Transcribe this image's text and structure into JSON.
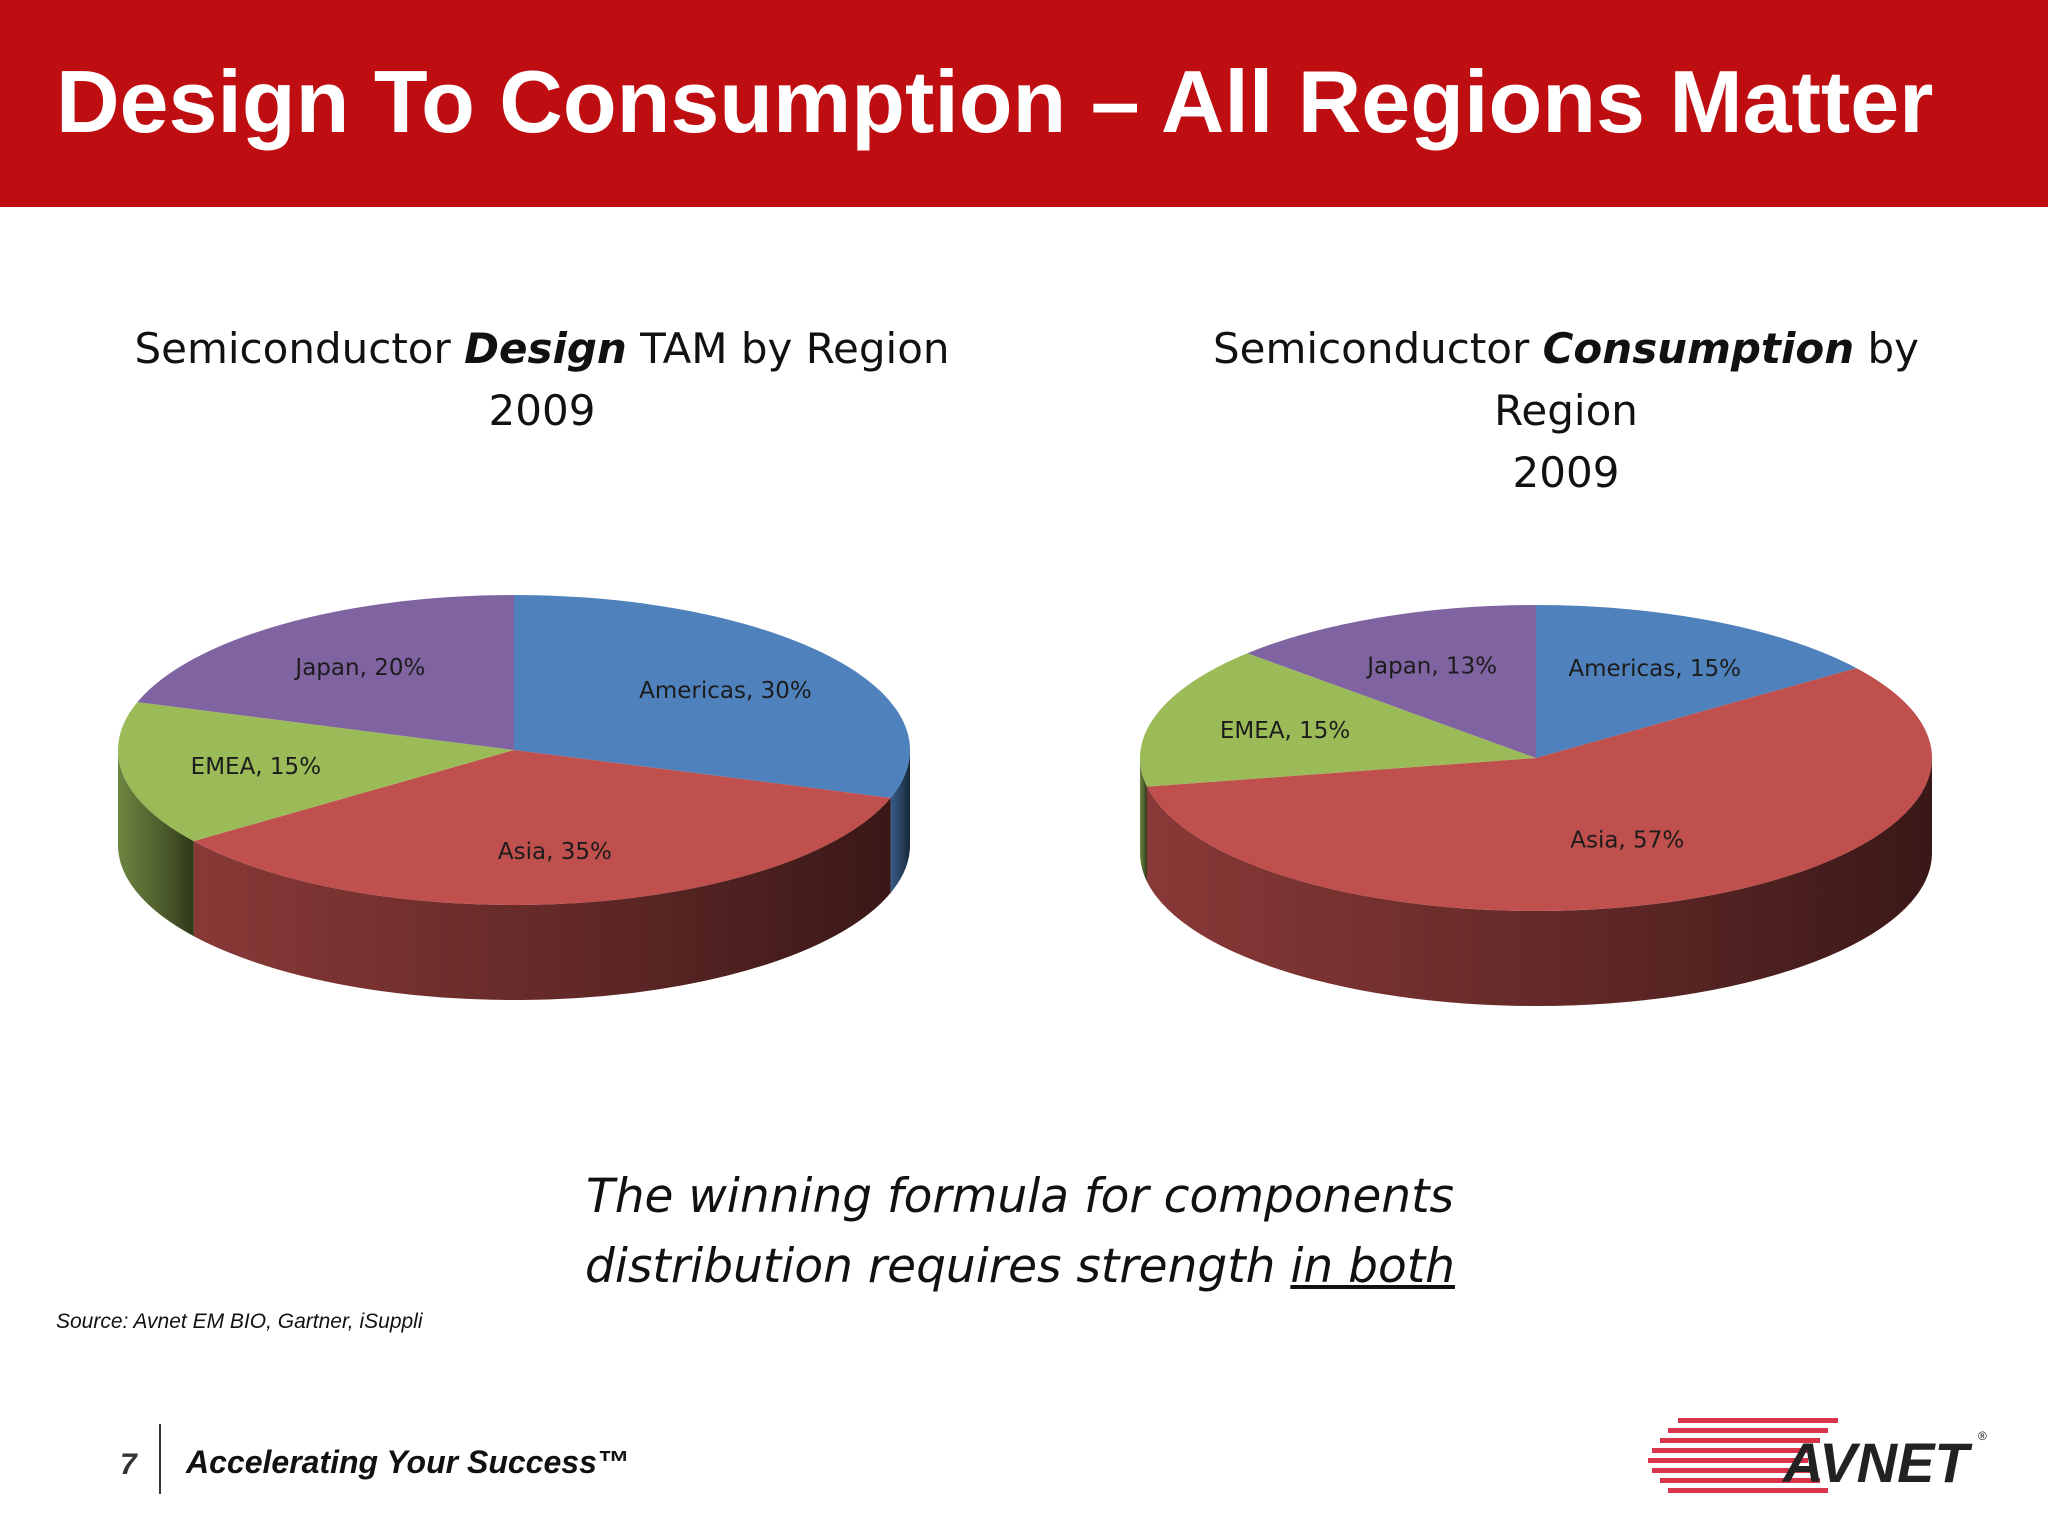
{
  "header": {
    "title": "Design To Consumption – All Regions Matter"
  },
  "colors": {
    "banner": "#bf0e12",
    "Americas": "#4f81bd",
    "Asia": "#c0504d",
    "EMEA": "#9bbb59",
    "Japan": "#8064a2"
  },
  "chart_data": [
    {
      "type": "pie",
      "title_pre": "Semiconductor ",
      "title_em": "Design",
      "title_post": " TAM by Region",
      "title_line2": "2009",
      "slices": [
        {
          "name": "Americas",
          "value": 30,
          "label": "Americas, 30%"
        },
        {
          "name": "Asia",
          "value": 35,
          "label": "Asia, 35%"
        },
        {
          "name": "EMEA",
          "value": 15,
          "label": "EMEA, 15%"
        },
        {
          "name": "Japan",
          "value": 20,
          "label": "Japan, 20%"
        }
      ]
    },
    {
      "type": "pie",
      "title_pre": "Semiconductor ",
      "title_em": "Consumption",
      "title_post": " by Region",
      "title_line2": "2009",
      "slices": [
        {
          "name": "Americas",
          "value": 15,
          "label": "Americas, 15%"
        },
        {
          "name": "Asia",
          "value": 57,
          "label": "Asia, 57%"
        },
        {
          "name": "EMEA",
          "value": 15,
          "label": "EMEA, 15%"
        },
        {
          "name": "Japan",
          "value": 13,
          "label": "Japan, 13%"
        }
      ]
    }
  ],
  "tagline": {
    "line1": "The winning formula for components",
    "line2_pre": "distribution requires strength ",
    "line2_underlined": "in both"
  },
  "source": "Source:  Avnet EM BIO, Gartner, iSuppli",
  "footer": {
    "page_number": "7",
    "tagline": "Accelerating Your Success™",
    "logo_text": "AVNET"
  }
}
